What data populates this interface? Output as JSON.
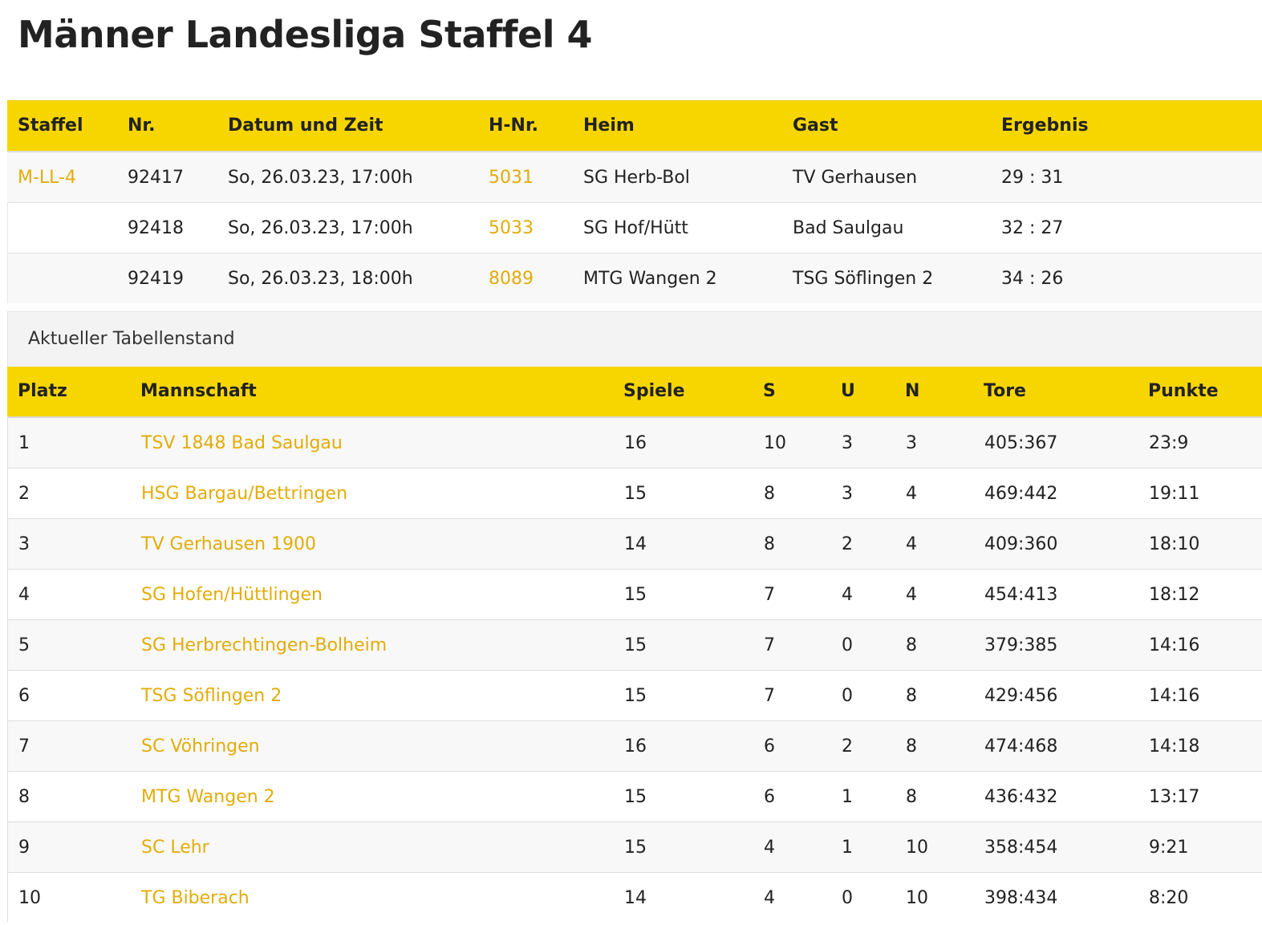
{
  "page": {
    "title": "Männer Landesliga Staffel 4"
  },
  "colors": {
    "accent": "#f7d600",
    "link": "#e2ac0a",
    "row_alt": "#f8f8f8",
    "text": "#222222"
  },
  "games": {
    "headers": {
      "staffel": "Staffel",
      "nr": "Nr.",
      "datum": "Datum und Zeit",
      "hnr": "H-Nr.",
      "heim": "Heim",
      "gast": "Gast",
      "ergebnis": "Ergebnis"
    },
    "rows": [
      {
        "staffel": "M-LL-4",
        "nr": "92417",
        "datum": "So, 26.03.23, 17:00h",
        "hnr": "5031",
        "heim": "SG Herb-Bol",
        "gast": "TV Gerhausen",
        "ergebnis": "29 : 31"
      },
      {
        "staffel": "",
        "nr": "92418",
        "datum": "So, 26.03.23, 17:00h",
        "hnr": "5033",
        "heim": "SG Hof/Hütt",
        "gast": "Bad Saulgau",
        "ergebnis": "32 : 27"
      },
      {
        "staffel": "",
        "nr": "92419",
        "datum": "So, 26.03.23, 18:00h",
        "hnr": "8089",
        "heim": "MTG Wangen 2",
        "gast": "TSG Söflingen 2",
        "ergebnis": "34 : 26"
      }
    ]
  },
  "standings": {
    "heading": "Aktueller Tabellenstand",
    "headers": {
      "platz": "Platz",
      "mannschaft": "Mannschaft",
      "spiele": "Spiele",
      "s": "S",
      "u": "U",
      "n": "N",
      "tore": "Tore",
      "punkte": "Punkte"
    },
    "rows": [
      {
        "platz": "1",
        "mannschaft": "TSV 1848 Bad Saulgau",
        "spiele": "16",
        "s": "10",
        "u": "3",
        "n": "3",
        "tore": "405:367",
        "punkte": "23:9"
      },
      {
        "platz": "2",
        "mannschaft": "HSG Bargau/Bettringen",
        "spiele": "15",
        "s": "8",
        "u": "3",
        "n": "4",
        "tore": "469:442",
        "punkte": "19:11"
      },
      {
        "platz": "3",
        "mannschaft": "TV Gerhausen 1900",
        "spiele": "14",
        "s": "8",
        "u": "2",
        "n": "4",
        "tore": "409:360",
        "punkte": "18:10"
      },
      {
        "platz": "4",
        "mannschaft": "SG Hofen/Hüttlingen",
        "spiele": "15",
        "s": "7",
        "u": "4",
        "n": "4",
        "tore": "454:413",
        "punkte": "18:12"
      },
      {
        "platz": "5",
        "mannschaft": "SG Herbrechtingen-Bolheim",
        "spiele": "15",
        "s": "7",
        "u": "0",
        "n": "8",
        "tore": "379:385",
        "punkte": "14:16"
      },
      {
        "platz": "6",
        "mannschaft": "TSG Söflingen 2",
        "spiele": "15",
        "s": "7",
        "u": "0",
        "n": "8",
        "tore": "429:456",
        "punkte": "14:16"
      },
      {
        "platz": "7",
        "mannschaft": "SC Vöhringen",
        "spiele": "16",
        "s": "6",
        "u": "2",
        "n": "8",
        "tore": "474:468",
        "punkte": "14:18"
      },
      {
        "platz": "8",
        "mannschaft": "MTG Wangen 2",
        "spiele": "15",
        "s": "6",
        "u": "1",
        "n": "8",
        "tore": "436:432",
        "punkte": "13:17"
      },
      {
        "platz": "9",
        "mannschaft": "SC Lehr",
        "spiele": "15",
        "s": "4",
        "u": "1",
        "n": "10",
        "tore": "358:454",
        "punkte": "9:21"
      },
      {
        "platz": "10",
        "mannschaft": "TG Biberach",
        "spiele": "14",
        "s": "4",
        "u": "0",
        "n": "10",
        "tore": "398:434",
        "punkte": "8:20"
      }
    ]
  }
}
